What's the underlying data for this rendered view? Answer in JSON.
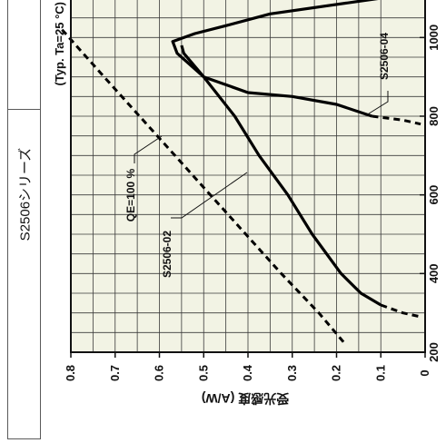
{
  "panel": {
    "series_title": "S2506シリーズ"
  },
  "chart_data": {
    "type": "line",
    "orientation_note": "figure is rotated: wavelength axis runs vertically, sensitivity axis horizontally (reversed)",
    "xlabel": "",
    "ylabel": "受光感度 (A/W)",
    "condition": "(Typ. Ta=25 °C)",
    "x_ticks": [
      "200",
      "400",
      "600",
      "800",
      "1000"
    ],
    "y_ticks": [
      "0.8",
      "0.7",
      "0.6",
      "0.5",
      "0.4",
      "0.3",
      "0.2",
      "0.1",
      "0"
    ],
    "xlim": [
      200,
      1100
    ],
    "ylim": [
      0,
      0.8
    ],
    "grid": true,
    "series": [
      {
        "name": "S2506-02",
        "style": "solid",
        "points": [
          [
            980,
            0.55
          ],
          [
            960,
            0.545
          ],
          [
            900,
            0.5
          ],
          [
            800,
            0.43
          ],
          [
            700,
            0.375
          ],
          [
            600,
            0.31
          ],
          [
            500,
            0.255
          ],
          [
            400,
            0.19
          ],
          [
            350,
            0.145
          ],
          [
            320,
            0.1
          ]
        ]
      },
      {
        "name": "S2506-04",
        "style": "solid",
        "points": [
          [
            1100,
            0.1
          ],
          [
            1060,
            0.35
          ],
          [
            1030,
            0.45
          ],
          [
            1010,
            0.52
          ],
          [
            990,
            0.57
          ],
          [
            960,
            0.56
          ],
          [
            900,
            0.5
          ],
          [
            860,
            0.4
          ],
          [
            850,
            0.3
          ],
          [
            830,
            0.2
          ],
          [
            800,
            0.12
          ]
        ]
      },
      {
        "name": "S2506-02 (ext.)",
        "style": "dashed",
        "points": [
          [
            320,
            0.1
          ],
          [
            300,
            0.05
          ],
          [
            290,
            0.01
          ]
        ]
      },
      {
        "name": "S2506-04 (ext.)",
        "style": "dashed",
        "points": [
          [
            800,
            0.12
          ],
          [
            790,
            0.05
          ],
          [
            780,
            0.01
          ]
        ]
      },
      {
        "name": "QE=100 %",
        "style": "dashed",
        "points": [
          [
            1020,
            0.82
          ],
          [
            900,
            0.725
          ],
          [
            800,
            0.645
          ],
          [
            700,
            0.565
          ],
          [
            600,
            0.485
          ],
          [
            500,
            0.405
          ],
          [
            400,
            0.325
          ],
          [
            300,
            0.24
          ],
          [
            220,
            0.18
          ]
        ]
      }
    ],
    "annotations": [
      {
        "key": "s0402",
        "text": "S2506-02",
        "target": "S2506-02"
      },
      {
        "key": "s0404",
        "text": "S2506-04",
        "target": "S2506-04"
      },
      {
        "key": "qe",
        "text": "QE=100 %",
        "target": "QE=100 %"
      }
    ]
  }
}
